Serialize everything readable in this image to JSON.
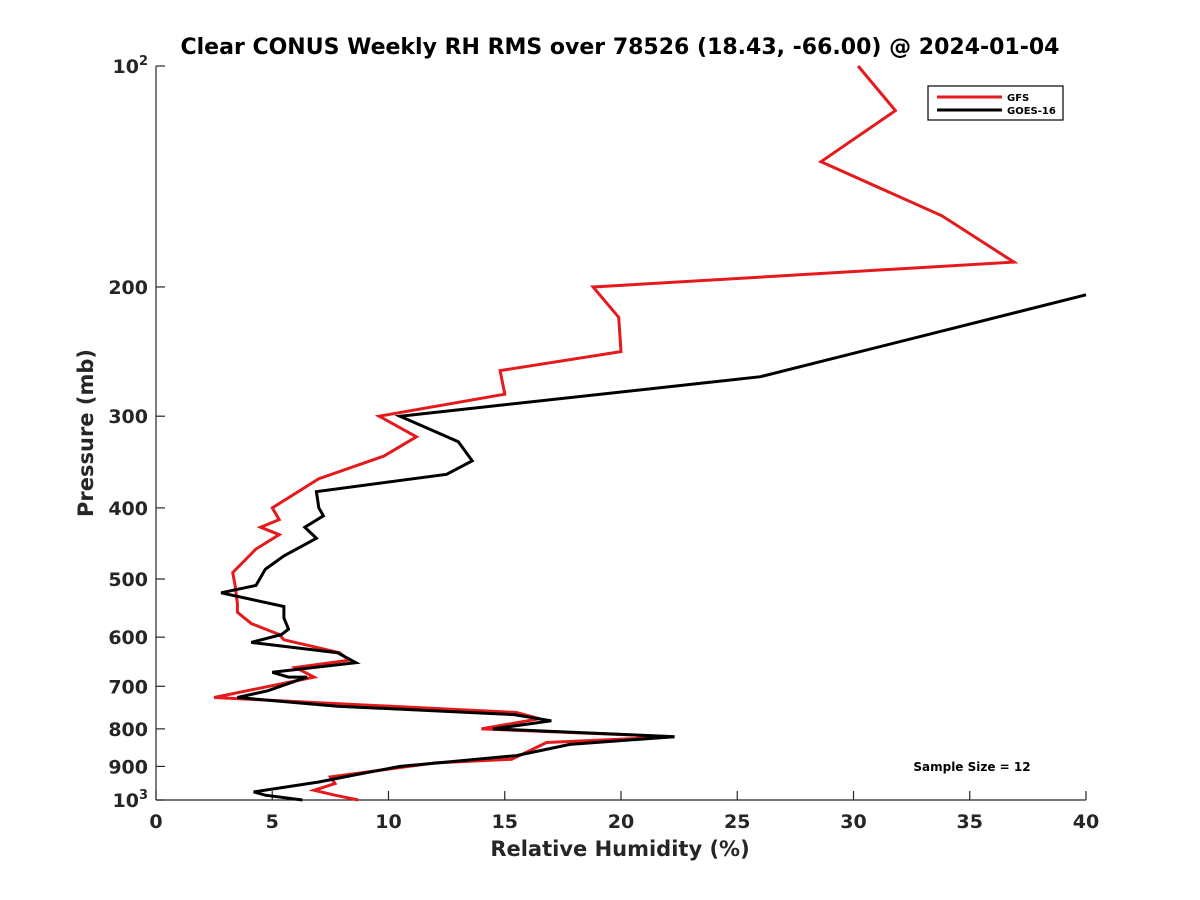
{
  "chart_data": {
    "type": "line",
    "title": "Clear CONUS Weekly RH RMS over 78526 (18.43, -66.00) @ 2024-01-04",
    "xlabel": "Relative Humidity (%)",
    "ylabel": "Pressure (mb)",
    "xlim": [
      0,
      40
    ],
    "ylim": [
      100,
      1000
    ],
    "y_scale": "log",
    "y_reversed": true,
    "x_ticks": [
      "0",
      "5",
      "10",
      "15",
      "20",
      "25",
      "30",
      "35",
      "40"
    ],
    "y_ticks": [
      {
        "value": 100,
        "base": "10",
        "exp": "2"
      },
      {
        "value": 200,
        "label": "200"
      },
      {
        "value": 300,
        "label": "300"
      },
      {
        "value": 400,
        "label": "400"
      },
      {
        "value": 500,
        "label": "500"
      },
      {
        "value": 600,
        "label": "600"
      },
      {
        "value": 700,
        "label": "700"
      },
      {
        "value": 800,
        "label": "800"
      },
      {
        "value": 900,
        "label": "900"
      },
      {
        "value": 1000,
        "base": "10",
        "exp": "3"
      }
    ],
    "grid": false,
    "legend_position": "top-right",
    "series": [
      {
        "name": "GFS",
        "color": "#e41a1c",
        "points": [
          [
            30.2,
            100
          ],
          [
            31.8,
            115
          ],
          [
            28.6,
            135
          ],
          [
            33.8,
            160
          ],
          [
            36.9,
            185
          ],
          [
            18.8,
            200
          ],
          [
            19.9,
            220
          ],
          [
            20.0,
            245
          ],
          [
            14.8,
            260
          ],
          [
            15.0,
            280
          ],
          [
            9.6,
            300
          ],
          [
            11.2,
            320
          ],
          [
            9.8,
            340
          ],
          [
            7.0,
            365
          ],
          [
            5.0,
            400
          ],
          [
            5.3,
            415
          ],
          [
            4.5,
            425
          ],
          [
            5.3,
            435
          ],
          [
            4.3,
            455
          ],
          [
            3.3,
            490
          ],
          [
            3.4,
            510
          ],
          [
            3.5,
            540
          ],
          [
            3.5,
            555
          ],
          [
            4.1,
            575
          ],
          [
            5.3,
            595
          ],
          [
            5.5,
            605
          ],
          [
            7.9,
            630
          ],
          [
            8.3,
            645
          ],
          [
            6.0,
            660
          ],
          [
            6.8,
            680
          ],
          [
            2.5,
            725
          ],
          [
            15.5,
            760
          ],
          [
            16.5,
            775
          ],
          [
            14.0,
            800
          ],
          [
            22.3,
            820
          ],
          [
            16.8,
            835
          ],
          [
            15.3,
            880
          ],
          [
            12.0,
            890
          ],
          [
            7.5,
            930
          ],
          [
            7.7,
            950
          ],
          [
            6.8,
            970
          ],
          [
            7.7,
            985
          ],
          [
            8.7,
            1000
          ]
        ]
      },
      {
        "name": "GOES-16",
        "color": "#000000",
        "points": [
          [
            40.0,
            205
          ],
          [
            26.0,
            265
          ],
          [
            10.5,
            300
          ],
          [
            13.0,
            325
          ],
          [
            13.6,
            345
          ],
          [
            12.5,
            360
          ],
          [
            6.9,
            380
          ],
          [
            7.0,
            400
          ],
          [
            7.2,
            410
          ],
          [
            6.4,
            425
          ],
          [
            6.9,
            440
          ],
          [
            5.5,
            465
          ],
          [
            4.7,
            485
          ],
          [
            4.3,
            510
          ],
          [
            2.8,
            522
          ],
          [
            5.5,
            545
          ],
          [
            5.5,
            565
          ],
          [
            5.7,
            585
          ],
          [
            5.4,
            595
          ],
          [
            4.1,
            610
          ],
          [
            7.8,
            630
          ],
          [
            8.6,
            650
          ],
          [
            5.0,
            670
          ],
          [
            5.7,
            680
          ],
          [
            6.5,
            680
          ],
          [
            4.8,
            710
          ],
          [
            3.5,
            725
          ],
          [
            7.8,
            745
          ],
          [
            15.4,
            765
          ],
          [
            17.0,
            780
          ],
          [
            14.5,
            800
          ],
          [
            22.3,
            820
          ],
          [
            17.8,
            840
          ],
          [
            15.5,
            870
          ],
          [
            10.5,
            900
          ],
          [
            8.5,
            925
          ],
          [
            7.0,
            945
          ],
          [
            4.2,
            975
          ],
          [
            4.7,
            985
          ],
          [
            6.3,
            1000
          ]
        ]
      }
    ],
    "annotation": "Sample Size = 12"
  }
}
